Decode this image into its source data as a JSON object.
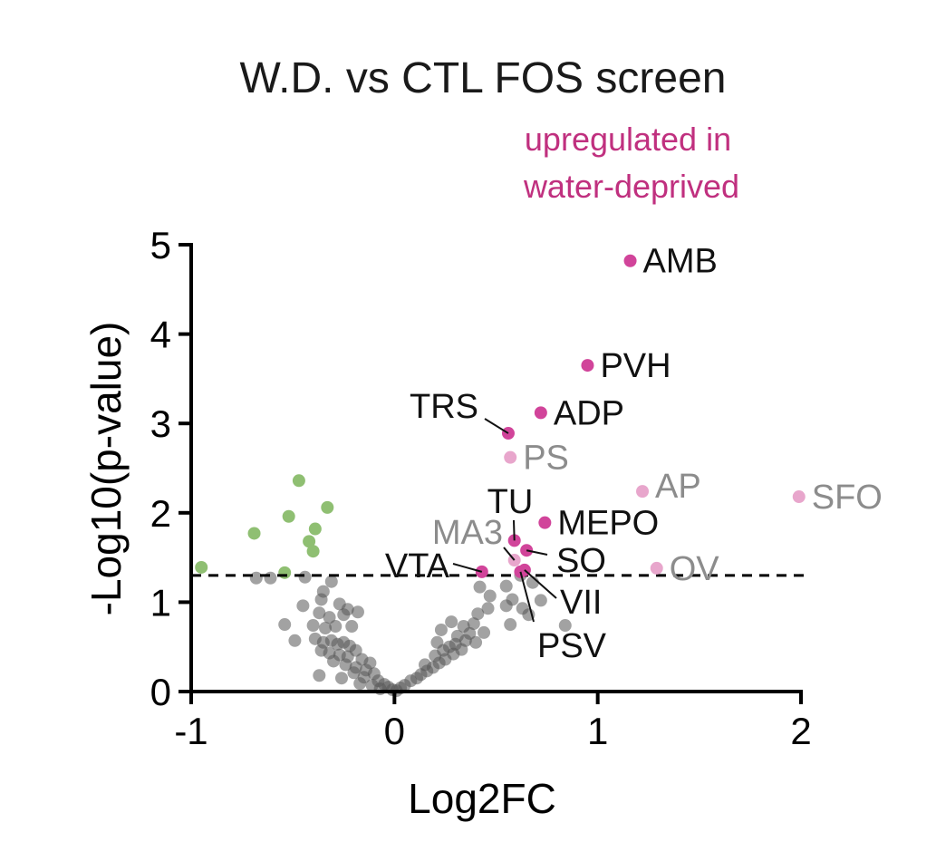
{
  "chart_data": {
    "type": "scatter",
    "title": "W.D. vs CTL FOS screen",
    "annotation": [
      "upregulated in",
      "water-deprived"
    ],
    "xlabel": "Log2FC",
    "ylabel": "-Log10(p-value)",
    "xlim": [
      -1,
      2
    ],
    "ylim": [
      0,
      5
    ],
    "xticks": [
      -1,
      0,
      1,
      2
    ],
    "xtick_labels": [
      "-1",
      "0",
      "1",
      "2"
    ],
    "yticks": [
      0,
      1,
      2,
      3,
      4,
      5
    ],
    "ytick_labels": [
      "0",
      "1",
      "2",
      "3",
      "4",
      "5"
    ],
    "threshold_y": 1.3,
    "grid": false,
    "colors": {
      "significant_up": "#d1449a",
      "up_light": "#e8a6cc",
      "down": "#8fbf72",
      "nonsignificant": "#555555",
      "label_light": "#8c8c8c",
      "annotation": "#c0307f"
    },
    "labeled_points": [
      {
        "label": "AMB",
        "x": 1.16,
        "y": 4.82,
        "group": "significant_up"
      },
      {
        "label": "PVH",
        "x": 0.95,
        "y": 3.65,
        "group": "significant_up"
      },
      {
        "label": "ADP",
        "x": 0.72,
        "y": 3.12,
        "group": "significant_up"
      },
      {
        "label": "TRS",
        "x": 0.56,
        "y": 2.89,
        "group": "significant_up"
      },
      {
        "label": "PS",
        "x": 0.57,
        "y": 2.62,
        "group": "up_light"
      },
      {
        "label": "AP",
        "x": 1.22,
        "y": 2.24,
        "group": "up_light"
      },
      {
        "label": "SFO",
        "x": 1.99,
        "y": 2.18,
        "group": "up_light"
      },
      {
        "label": "MEPO",
        "x": 0.74,
        "y": 1.89,
        "group": "significant_up"
      },
      {
        "label": "TU",
        "x": 0.59,
        "y": 1.69,
        "group": "significant_up"
      },
      {
        "label": "SO",
        "x": 0.65,
        "y": 1.58,
        "group": "significant_up"
      },
      {
        "label": "MA3",
        "x": 0.59,
        "y": 1.47,
        "group": "up_light"
      },
      {
        "label": "VTA",
        "x": 0.43,
        "y": 1.34,
        "group": "significant_up"
      },
      {
        "label": "VII",
        "x": 0.64,
        "y": 1.36,
        "group": "significant_up"
      },
      {
        "label": "PSV",
        "x": 0.62,
        "y": 1.34,
        "group": "significant_up"
      },
      {
        "label": "OV",
        "x": 1.29,
        "y": 1.38,
        "group": "up_light"
      }
    ],
    "down_points": [
      {
        "x": -0.95,
        "y": 1.39
      },
      {
        "x": -0.69,
        "y": 1.77
      },
      {
        "x": -0.54,
        "y": 1.33
      },
      {
        "x": -0.47,
        "y": 2.36
      },
      {
        "x": -0.52,
        "y": 1.96
      },
      {
        "x": -0.33,
        "y": 2.06
      },
      {
        "x": -0.39,
        "y": 1.82
      },
      {
        "x": -0.42,
        "y": 1.68
      },
      {
        "x": -0.4,
        "y": 1.57
      }
    ],
    "nonsignificant_points": [
      {
        "x": -0.68,
        "y": 1.27
      },
      {
        "x": -0.61,
        "y": 1.27
      },
      {
        "x": -0.44,
        "y": 1.28
      },
      {
        "x": -0.31,
        "y": 1.23
      },
      {
        "x": -0.35,
        "y": 1.12
      },
      {
        "x": -0.36,
        "y": 1.03
      },
      {
        "x": -0.45,
        "y": 0.96
      },
      {
        "x": -0.27,
        "y": 0.98
      },
      {
        "x": -0.23,
        "y": 0.92
      },
      {
        "x": -0.37,
        "y": 0.88
      },
      {
        "x": -0.32,
        "y": 0.83
      },
      {
        "x": -0.25,
        "y": 0.86
      },
      {
        "x": -0.18,
        "y": 0.89
      },
      {
        "x": -0.54,
        "y": 0.75
      },
      {
        "x": -0.4,
        "y": 0.74
      },
      {
        "x": -0.34,
        "y": 0.71
      },
      {
        "x": -0.29,
        "y": 0.73
      },
      {
        "x": -0.21,
        "y": 0.73
      },
      {
        "x": -0.49,
        "y": 0.57
      },
      {
        "x": -0.39,
        "y": 0.59
      },
      {
        "x": -0.35,
        "y": 0.55
      },
      {
        "x": -0.31,
        "y": 0.57
      },
      {
        "x": -0.28,
        "y": 0.53
      },
      {
        "x": -0.25,
        "y": 0.55
      },
      {
        "x": -0.22,
        "y": 0.51
      },
      {
        "x": -0.19,
        "y": 0.46
      },
      {
        "x": -0.36,
        "y": 0.46
      },
      {
        "x": -0.32,
        "y": 0.43
      },
      {
        "x": -0.27,
        "y": 0.41
      },
      {
        "x": -0.23,
        "y": 0.39
      },
      {
        "x": -0.16,
        "y": 0.36
      },
      {
        "x": -0.12,
        "y": 0.32
      },
      {
        "x": -0.3,
        "y": 0.34
      },
      {
        "x": -0.24,
        "y": 0.3
      },
      {
        "x": -0.19,
        "y": 0.27
      },
      {
        "x": -0.14,
        "y": 0.24
      },
      {
        "x": -0.1,
        "y": 0.2
      },
      {
        "x": -0.2,
        "y": 0.21
      },
      {
        "x": -0.15,
        "y": 0.16
      },
      {
        "x": -0.08,
        "y": 0.12
      },
      {
        "x": -0.05,
        "y": 0.08
      },
      {
        "x": -0.03,
        "y": 0.05
      },
      {
        "x": -0.01,
        "y": 0.02
      },
      {
        "x": -0.37,
        "y": 0.18
      },
      {
        "x": -0.26,
        "y": 0.15
      },
      {
        "x": -0.17,
        "y": 0.09
      },
      {
        "x": -0.11,
        "y": 0.07
      },
      {
        "x": -0.07,
        "y": 0.03
      },
      {
        "x": 0.01,
        "y": 0.01
      },
      {
        "x": 0.03,
        "y": 0.04
      },
      {
        "x": 0.05,
        "y": 0.07
      },
      {
        "x": 0.08,
        "y": 0.12
      },
      {
        "x": 0.11,
        "y": 0.15
      },
      {
        "x": 0.13,
        "y": 0.19
      },
      {
        "x": 0.16,
        "y": 0.23
      },
      {
        "x": 0.19,
        "y": 0.27
      },
      {
        "x": 0.22,
        "y": 0.32
      },
      {
        "x": 0.25,
        "y": 0.36
      },
      {
        "x": 0.15,
        "y": 0.3
      },
      {
        "x": 0.2,
        "y": 0.4
      },
      {
        "x": 0.24,
        "y": 0.46
      },
      {
        "x": 0.27,
        "y": 0.5
      },
      {
        "x": 0.3,
        "y": 0.53
      },
      {
        "x": 0.33,
        "y": 0.47
      },
      {
        "x": 0.29,
        "y": 0.42
      },
      {
        "x": 0.21,
        "y": 0.55
      },
      {
        "x": 0.31,
        "y": 0.62
      },
      {
        "x": 0.35,
        "y": 0.57
      },
      {
        "x": 0.37,
        "y": 0.65
      },
      {
        "x": 0.4,
        "y": 0.55
      },
      {
        "x": 0.23,
        "y": 0.69
      },
      {
        "x": 0.28,
        "y": 0.78
      },
      {
        "x": 0.34,
        "y": 0.73
      },
      {
        "x": 0.39,
        "y": 0.76
      },
      {
        "x": 0.41,
        "y": 0.87
      },
      {
        "x": 0.44,
        "y": 0.66
      },
      {
        "x": 0.46,
        "y": 0.93
      },
      {
        "x": 0.47,
        "y": 1.07
      },
      {
        "x": 0.42,
        "y": 1.17
      },
      {
        "x": 0.55,
        "y": 1.18
      },
      {
        "x": 0.58,
        "y": 1.03
      },
      {
        "x": 0.55,
        "y": 0.96
      },
      {
        "x": 0.63,
        "y": 0.93
      },
      {
        "x": 0.57,
        "y": 0.75
      },
      {
        "x": 0.72,
        "y": 1.02
      },
      {
        "x": 0.68,
        "y": 1.22
      },
      {
        "x": 0.84,
        "y": 0.74
      },
      {
        "x": 0.62,
        "y": 1.3
      },
      {
        "x": 0.66,
        "y": 0.86
      }
    ]
  }
}
